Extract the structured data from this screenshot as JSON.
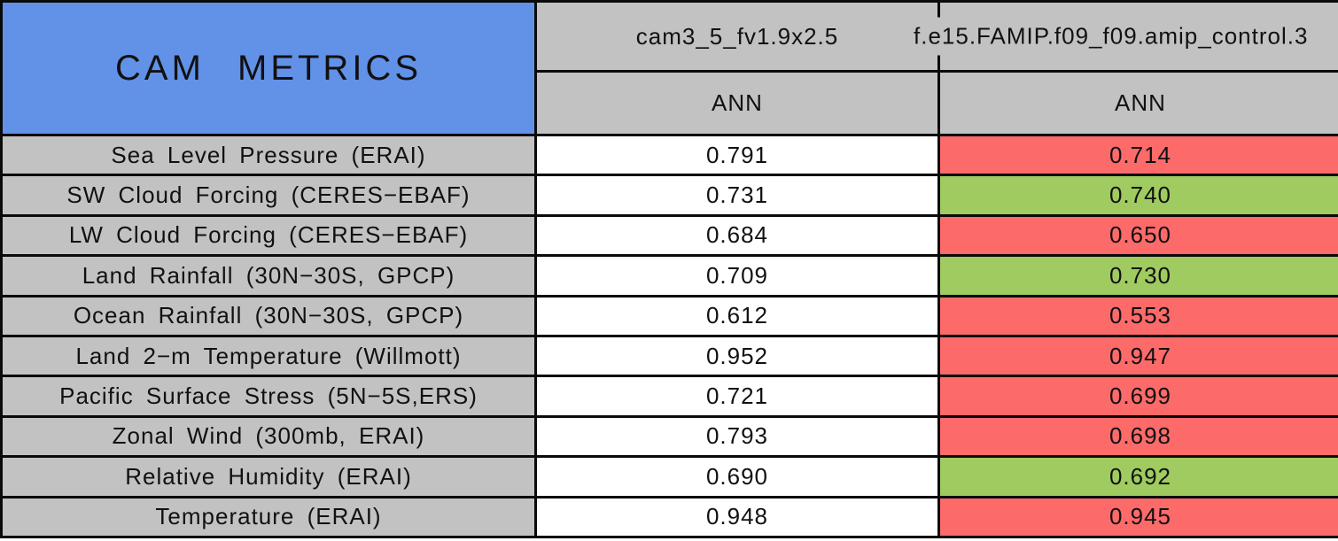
{
  "colors": {
    "header-blue": "#6292e8",
    "cell-gray": "#c2c2c2",
    "better-green": "#9fcb60",
    "worse-red": "#fc6a6a",
    "grid-black": "#0a0a0a"
  },
  "table": {
    "title": "CAM METRICS",
    "columns": [
      {
        "model": "cam3_5_fv1.9x2.5",
        "season": "ANN"
      },
      {
        "model": "f.e15.FAMIP.f09_f09.amip_control.3",
        "season": "ANN"
      }
    ]
  },
  "rows": [
    {
      "label": "Sea Level Pressure (ERAI)",
      "col1": "0.791",
      "col2": "0.714",
      "col2_status": "worse"
    },
    {
      "label": "SW Cloud Forcing (CERES−EBAF)",
      "col1": "0.731",
      "col2": "0.740",
      "col2_status": "better"
    },
    {
      "label": "LW Cloud Forcing (CERES−EBAF)",
      "col1": "0.684",
      "col2": "0.650",
      "col2_status": "worse"
    },
    {
      "label": "Land Rainfall (30N−30S, GPCP)",
      "col1": "0.709",
      "col2": "0.730",
      "col2_status": "better"
    },
    {
      "label": "Ocean Rainfall (30N−30S, GPCP)",
      "col1": "0.612",
      "col2": "0.553",
      "col2_status": "worse"
    },
    {
      "label": "Land 2−m Temperature (Willmott)",
      "col1": "0.952",
      "col2": "0.947",
      "col2_status": "worse"
    },
    {
      "label": "Pacific Surface Stress (5N−5S,ERS)",
      "col1": "0.721",
      "col2": "0.699",
      "col2_status": "worse"
    },
    {
      "label": "Zonal Wind (300mb, ERAI)",
      "col1": "0.793",
      "col2": "0.698",
      "col2_status": "worse"
    },
    {
      "label": "Relative Humidity (ERAI)",
      "col1": "0.690",
      "col2": "0.692",
      "col2_status": "better"
    },
    {
      "label": "Temperature (ERAI)",
      "col1": "0.948",
      "col2": "0.945",
      "col2_status": "worse"
    }
  ],
  "chart_data": {
    "type": "table",
    "title": "CAM METRICS",
    "columns": [
      "cam3_5_fv1.9x2.5",
      "f.e15.FAMIP.f09_f09.amip_control.3"
    ],
    "column_subheaders": [
      "ANN",
      "ANN"
    ],
    "rows": [
      {
        "metric": "Sea Level Pressure (ERAI)",
        "values": [
          0.791,
          0.714
        ],
        "second_vs_first": "worse"
      },
      {
        "metric": "SW Cloud Forcing (CERES−EBAF)",
        "values": [
          0.731,
          0.74
        ],
        "second_vs_first": "better"
      },
      {
        "metric": "LW Cloud Forcing (CERES−EBAF)",
        "values": [
          0.684,
          0.65
        ],
        "second_vs_first": "worse"
      },
      {
        "metric": "Land Rainfall (30N−30S, GPCP)",
        "values": [
          0.709,
          0.73
        ],
        "second_vs_first": "better"
      },
      {
        "metric": "Ocean Rainfall (30N−30S, GPCP)",
        "values": [
          0.612,
          0.553
        ],
        "second_vs_first": "worse"
      },
      {
        "metric": "Land 2−m Temperature (Willmott)",
        "values": [
          0.952,
          0.947
        ],
        "second_vs_first": "worse"
      },
      {
        "metric": "Pacific Surface Stress (5N−5S,ERS)",
        "values": [
          0.721,
          0.699
        ],
        "second_vs_first": "worse"
      },
      {
        "metric": "Zonal Wind (300mb, ERAI)",
        "values": [
          0.793,
          0.698
        ],
        "second_vs_first": "worse"
      },
      {
        "metric": "Relative Humidity (ERAI)",
        "values": [
          0.69,
          0.692
        ],
        "second_vs_first": "better"
      },
      {
        "metric": "Temperature (ERAI)",
        "values": [
          0.948,
          0.945
        ],
        "second_vs_first": "worse"
      }
    ],
    "cell_color_legend": {
      "better": "#9fcb60",
      "worse": "#fc6a6a",
      "reference": "#ffffff"
    }
  }
}
